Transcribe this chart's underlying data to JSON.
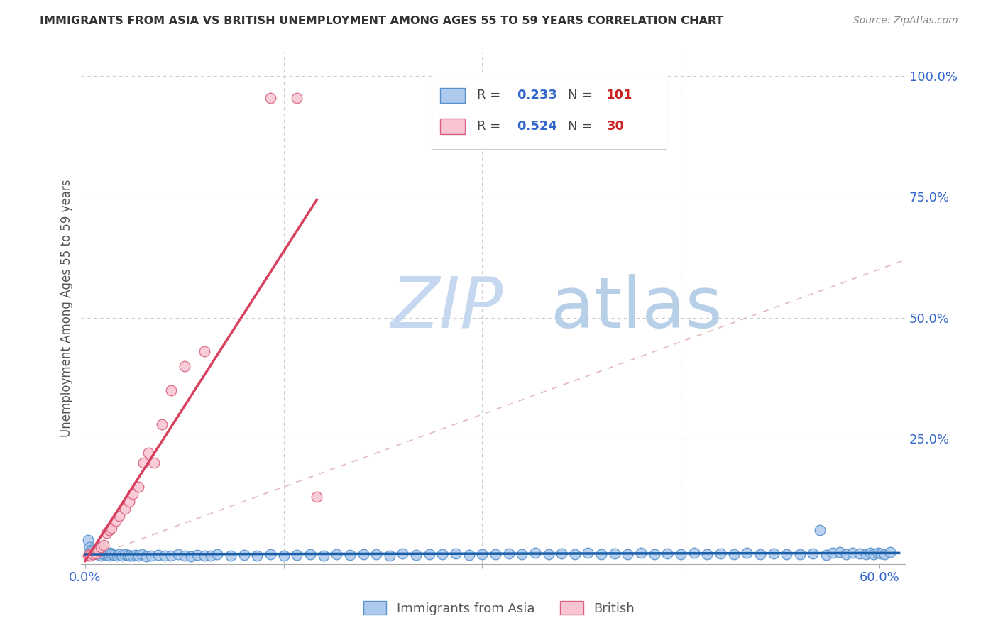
{
  "title": "IMMIGRANTS FROM ASIA VS BRITISH UNEMPLOYMENT AMONG AGES 55 TO 59 YEARS CORRELATION CHART",
  "source": "Source: ZipAtlas.com",
  "ylabel": "Unemployment Among Ages 55 to 59 years",
  "xlim": [
    -0.003,
    0.62
  ],
  "ylim": [
    -0.01,
    1.05
  ],
  "background_color": "#ffffff",
  "grid_color": "#cccccc",
  "blue_R": "0.233",
  "blue_N": "101",
  "pink_R": "0.524",
  "pink_N": "30",
  "blue_color": "#aecbee",
  "blue_edge_color": "#5591cc",
  "blue_line_color": "#1a5fa8",
  "pink_color": "#f8c5d0",
  "pink_edge_color": "#d96080",
  "pink_line_color": "#d84060",
  "legend_blue_fill": "#aecbee",
  "legend_blue_edge": "#5591cc",
  "legend_pink_fill": "#f8c5d0",
  "legend_pink_edge": "#d96080",
  "legend_R_color": "#3366cc",
  "legend_N_color": "#cc2222",
  "legend_text_color": "#444444",
  "watermark_zip_color": "#c5d8ef",
  "watermark_atlas_color": "#b8cfe8",
  "blue_x": [
    0.002,
    0.003,
    0.004,
    0.005,
    0.006,
    0.007,
    0.008,
    0.009,
    0.01,
    0.011,
    0.012,
    0.013,
    0.014,
    0.015,
    0.016,
    0.017,
    0.018,
    0.019,
    0.02,
    0.022,
    0.024,
    0.026,
    0.028,
    0.03,
    0.032,
    0.034,
    0.036,
    0.038,
    0.04,
    0.043,
    0.046,
    0.05,
    0.055,
    0.06,
    0.065,
    0.07,
    0.075,
    0.08,
    0.085,
    0.09,
    0.095,
    0.1,
    0.11,
    0.12,
    0.13,
    0.14,
    0.15,
    0.16,
    0.17,
    0.18,
    0.19,
    0.2,
    0.21,
    0.22,
    0.23,
    0.24,
    0.25,
    0.26,
    0.27,
    0.28,
    0.29,
    0.3,
    0.31,
    0.32,
    0.33,
    0.34,
    0.35,
    0.36,
    0.37,
    0.38,
    0.39,
    0.4,
    0.41,
    0.42,
    0.43,
    0.44,
    0.45,
    0.46,
    0.47,
    0.48,
    0.49,
    0.5,
    0.51,
    0.52,
    0.53,
    0.54,
    0.55,
    0.555,
    0.56,
    0.565,
    0.57,
    0.575,
    0.58,
    0.585,
    0.59,
    0.593,
    0.596,
    0.599,
    0.601,
    0.604,
    0.608
  ],
  "blue_y": [
    0.04,
    0.025,
    0.015,
    0.02,
    0.018,
    0.012,
    0.016,
    0.01,
    0.014,
    0.022,
    0.008,
    0.012,
    0.01,
    0.015,
    0.009,
    0.011,
    0.008,
    0.013,
    0.01,
    0.009,
    0.007,
    0.01,
    0.008,
    0.011,
    0.009,
    0.007,
    0.008,
    0.009,
    0.007,
    0.01,
    0.006,
    0.008,
    0.009,
    0.007,
    0.008,
    0.01,
    0.007,
    0.006,
    0.009,
    0.008,
    0.007,
    0.01,
    0.008,
    0.009,
    0.007,
    0.01,
    0.008,
    0.009,
    0.011,
    0.008,
    0.01,
    0.009,
    0.011,
    0.01,
    0.008,
    0.012,
    0.009,
    0.011,
    0.01,
    0.012,
    0.009,
    0.011,
    0.01,
    0.012,
    0.011,
    0.013,
    0.01,
    0.012,
    0.011,
    0.013,
    0.01,
    0.012,
    0.011,
    0.013,
    0.01,
    0.012,
    0.011,
    0.013,
    0.01,
    0.012,
    0.011,
    0.013,
    0.01,
    0.012,
    0.011,
    0.01,
    0.012,
    0.06,
    0.009,
    0.013,
    0.015,
    0.01,
    0.013,
    0.012,
    0.011,
    0.014,
    0.01,
    0.013,
    0.012,
    0.011,
    0.015
  ],
  "pink_x": [
    0.002,
    0.003,
    0.004,
    0.005,
    0.006,
    0.007,
    0.008,
    0.009,
    0.01,
    0.012,
    0.014,
    0.016,
    0.018,
    0.02,
    0.023,
    0.026,
    0.03,
    0.033,
    0.036,
    0.04,
    0.044,
    0.048,
    0.052,
    0.058,
    0.065,
    0.075,
    0.09,
    0.14,
    0.16,
    0.175
  ],
  "pink_y": [
    0.008,
    0.01,
    0.008,
    0.012,
    0.01,
    0.015,
    0.012,
    0.018,
    0.02,
    0.025,
    0.03,
    0.055,
    0.06,
    0.065,
    0.08,
    0.09,
    0.105,
    0.12,
    0.135,
    0.15,
    0.2,
    0.22,
    0.2,
    0.28,
    0.35,
    0.4,
    0.43,
    0.955,
    0.955,
    0.13
  ],
  "diag_color": "#ddaaaa"
}
